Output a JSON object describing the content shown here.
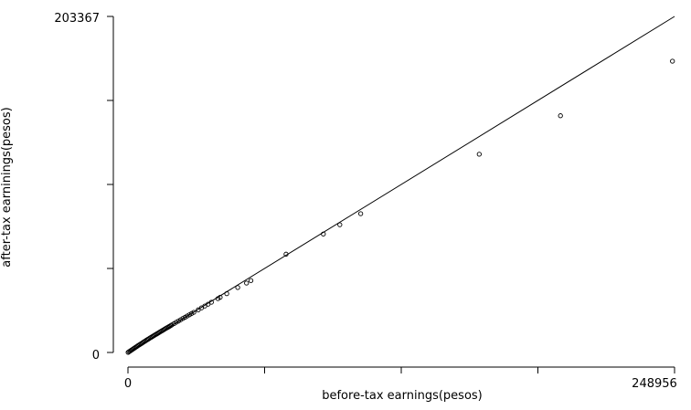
{
  "chart_data": {
    "type": "scatter",
    "title": "",
    "xlabel": "before-tax earnings(pesos)",
    "ylabel": "after-tax earninings(pesos)",
    "xlim": [
      0,
      248956
    ],
    "ylim": [
      0,
      203367
    ],
    "x_tick_labels": [
      "0",
      "248956"
    ],
    "y_tick_labels": [
      "0",
      "203367"
    ],
    "x_ticks": [
      0,
      62239,
      124478,
      186717,
      248956
    ],
    "y_ticks": [
      0,
      50842,
      101684,
      152525,
      203367
    ],
    "reference_line": {
      "x": [
        0,
        248956
      ],
      "y": [
        0,
        203367
      ]
    },
    "grid": false,
    "legend": "none",
    "points": {
      "x": [
        70,
        500,
        1000,
        1500,
        2000,
        2500,
        3000,
        3500,
        4000,
        4500,
        5000,
        5500,
        6000,
        6500,
        7000,
        7500,
        8000,
        8500,
        9000,
        9500,
        10000,
        10500,
        11000,
        11500,
        12000,
        12500,
        13000,
        13500,
        14000,
        14500,
        15000,
        15500,
        16000,
        16500,
        17000,
        17500,
        18000,
        18500,
        19000,
        19500,
        20000,
        21000,
        22000,
        23000,
        24000,
        25000,
        26000,
        27000,
        28000,
        29000,
        30000,
        32000,
        33500,
        35000,
        36500,
        38000,
        41000,
        42000,
        45000,
        50000,
        54000,
        56000,
        72000,
        89000,
        96500,
        106000,
        160000,
        197000,
        248000
      ],
      "y": [
        70,
        450,
        900,
        1350,
        1800,
        2250,
        2700,
        3150,
        3600,
        4050,
        4500,
        4900,
        5300,
        5750,
        6200,
        6600,
        7050,
        7500,
        7900,
        8300,
        8750,
        9150,
        9550,
        9950,
        10350,
        10750,
        11150,
        11550,
        11950,
        12350,
        12750,
        13150,
        13550,
        13950,
        14350,
        14750,
        15100,
        15500,
        15900,
        16300,
        16700,
        17500,
        18300,
        19000,
        19800,
        20600,
        21300,
        22100,
        22800,
        23600,
        24300,
        25800,
        27000,
        28100,
        29200,
        30400,
        32600,
        33400,
        35600,
        39300,
        42000,
        43500,
        59500,
        71700,
        77300,
        84000,
        120000,
        143300,
        176300
      ]
    }
  }
}
